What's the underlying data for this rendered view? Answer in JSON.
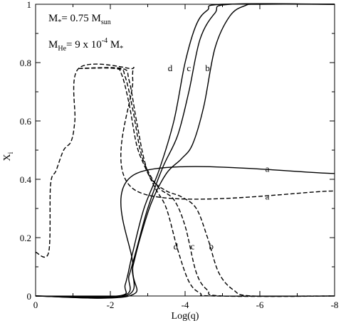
{
  "chart_data": {
    "type": "line",
    "xlabel": "Log(q)",
    "ylabel": "X",
    "ylabel_sub": "i",
    "xlim": [
      0,
      -8
    ],
    "ylim": [
      0,
      1
    ],
    "xticks": [
      0,
      -2,
      -4,
      -6,
      -8
    ],
    "xtick_labels": [
      "0",
      "-2",
      "-4",
      "-6",
      "-8"
    ],
    "yticks": [
      0,
      0.2,
      0.4,
      0.6,
      0.8,
      1
    ],
    "ytick_labels": [
      "0",
      "0.2",
      "0.4",
      "0.6",
      "0.8",
      "1"
    ],
    "grid": false,
    "annotations": {
      "mass": {
        "prefix": "M",
        "prefix_sub": "*",
        "eq": "= 0.75 M",
        "suffix_sub": "sun"
      },
      "mhe": {
        "prefix": "M",
        "prefix_sub": "He",
        "eq": "= 9 x 10",
        "exp": "-4",
        "after": " M",
        "after_sub": "*"
      }
    },
    "series": [
      {
        "style": "solid",
        "label": "d",
        "label_pos": [
          -3.6,
          0.78
        ],
        "points": [
          [
            0,
            0
          ],
          [
            -2.2,
            0
          ],
          [
            -2.4,
            0.04
          ],
          [
            -2.6,
            0.15
          ],
          [
            -2.9,
            0.3
          ],
          [
            -3.3,
            0.43
          ],
          [
            -3.7,
            0.6
          ],
          [
            -4.0,
            0.8
          ],
          [
            -4.3,
            0.93
          ],
          [
            -4.6,
            0.98
          ],
          [
            -5.0,
            1.0
          ],
          [
            -8,
            1.0
          ]
        ]
      },
      {
        "style": "solid",
        "label": "c",
        "label_pos": [
          -4.1,
          0.78
        ],
        "points": [
          [
            0,
            0
          ],
          [
            -2.3,
            0
          ],
          [
            -2.5,
            0.07
          ],
          [
            -2.7,
            0.16
          ],
          [
            -3.0,
            0.3
          ],
          [
            -3.4,
            0.44
          ],
          [
            -3.8,
            0.55
          ],
          [
            -4.1,
            0.7
          ],
          [
            -4.4,
            0.88
          ],
          [
            -4.8,
            0.97
          ],
          [
            -5.2,
            1.0
          ],
          [
            -8,
            1.0
          ]
        ]
      },
      {
        "style": "solid",
        "label": "b",
        "label_pos": [
          -4.6,
          0.78
        ],
        "points": [
          [
            0,
            0
          ],
          [
            -2.4,
            0
          ],
          [
            -2.6,
            0.1
          ],
          [
            -2.8,
            0.2
          ],
          [
            -3.1,
            0.32
          ],
          [
            -3.5,
            0.42
          ],
          [
            -3.9,
            0.47
          ],
          [
            -4.2,
            0.52
          ],
          [
            -4.5,
            0.65
          ],
          [
            -4.8,
            0.85
          ],
          [
            -5.2,
            0.96
          ],
          [
            -5.6,
            0.995
          ],
          [
            -6.0,
            1.0
          ],
          [
            -8,
            1.0
          ]
        ]
      },
      {
        "style": "solid",
        "label": "a",
        "label_pos": [
          -6.2,
          0.435
        ],
        "points": [
          [
            0,
            0
          ],
          [
            -2.5,
            0
          ],
          [
            -2.6,
            0.1
          ],
          [
            -2.7,
            0.42
          ],
          [
            -8,
            0.42
          ]
        ]
      },
      {
        "style": "dashed",
        "label": "a",
        "label_pos": [
          -6.2,
          0.34
        ],
        "points": [
          [
            0,
            0.15
          ],
          [
            -0.35,
            0.15
          ],
          [
            -0.4,
            0.38
          ],
          [
            -0.55,
            0.43
          ],
          [
            -0.75,
            0.5
          ],
          [
            -0.95,
            0.53
          ],
          [
            -1.05,
            0.6
          ],
          [
            -1.15,
            0.78
          ],
          [
            -2.5,
            0.78
          ],
          [
            -2.6,
            0.74
          ],
          [
            -2.7,
            0.36
          ],
          [
            -8,
            0.36
          ]
        ]
      },
      {
        "style": "dashed",
        "label": "d",
        "label_pos": [
          -3.75,
          0.17
        ],
        "points": [
          [
            -1.15,
            0.78
          ],
          [
            -2.1,
            0.78
          ],
          [
            -2.3,
            0.76
          ],
          [
            -2.5,
            0.66
          ],
          [
            -2.7,
            0.52
          ],
          [
            -2.9,
            0.45
          ],
          [
            -3.2,
            0.37
          ],
          [
            -3.5,
            0.3
          ],
          [
            -3.8,
            0.16
          ],
          [
            -4.1,
            0.05
          ],
          [
            -4.4,
            0.01
          ],
          [
            -4.8,
            0
          ],
          [
            -8,
            0
          ]
        ]
      },
      {
        "style": "dashed",
        "label": "c",
        "label_pos": [
          -4.2,
          0.17
        ],
        "points": [
          [
            -1.15,
            0.78
          ],
          [
            -2.2,
            0.78
          ],
          [
            -2.4,
            0.75
          ],
          [
            -2.6,
            0.64
          ],
          [
            -2.8,
            0.5
          ],
          [
            -3.0,
            0.43
          ],
          [
            -3.3,
            0.37
          ],
          [
            -3.7,
            0.33
          ],
          [
            -4.0,
            0.24
          ],
          [
            -4.3,
            0.08
          ],
          [
            -4.6,
            0.02
          ],
          [
            -5.0,
            0
          ],
          [
            -8,
            0
          ]
        ]
      },
      {
        "style": "dashed",
        "label": "b",
        "label_pos": [
          -4.7,
          0.17
        ],
        "points": [
          [
            -1.15,
            0.78
          ],
          [
            -2.3,
            0.78
          ],
          [
            -2.5,
            0.74
          ],
          [
            -2.7,
            0.6
          ],
          [
            -2.9,
            0.47
          ],
          [
            -3.1,
            0.4
          ],
          [
            -3.5,
            0.36
          ],
          [
            -3.9,
            0.34
          ],
          [
            -4.3,
            0.3
          ],
          [
            -4.6,
            0.2
          ],
          [
            -4.9,
            0.08
          ],
          [
            -5.3,
            0.02
          ],
          [
            -5.8,
            0
          ],
          [
            -8,
            0
          ]
        ]
      }
    ]
  }
}
